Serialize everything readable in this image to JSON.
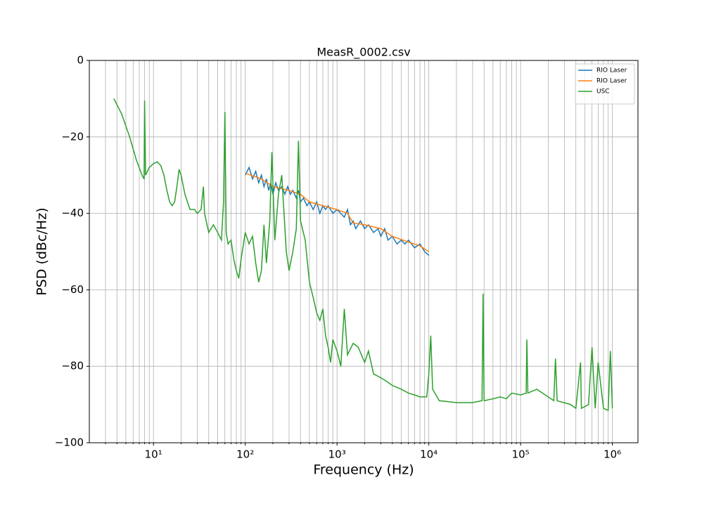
{
  "chart_data": {
    "type": "line",
    "title": "MeasR_0002.csv",
    "x_label": "Frequency (Hz)",
    "y_label": "PSD (dBc/Hz)",
    "log_x": true,
    "grid": true,
    "legend": "upper right",
    "xlim": [
      2,
      1900000
    ],
    "ylim": [
      -100,
      0
    ],
    "xticks": [
      {
        "value": 10,
        "label": "10¹"
      },
      {
        "value": 100,
        "label": "10²"
      },
      {
        "value": 1000,
        "label": "10³"
      },
      {
        "value": 10000,
        "label": "10⁴"
      },
      {
        "value": 100000,
        "label": "10⁵"
      },
      {
        "value": 1000000,
        "label": "10⁶"
      }
    ],
    "xminorticks": [
      3,
      4,
      5,
      6,
      7,
      8,
      9,
      20,
      30,
      40,
      50,
      60,
      70,
      80,
      90,
      200,
      300,
      400,
      500,
      600,
      700,
      800,
      900,
      2000,
      3000,
      4000,
      5000,
      6000,
      7000,
      8000,
      9000,
      20000,
      30000,
      40000,
      50000,
      60000,
      70000,
      80000,
      90000,
      200000,
      300000,
      400000,
      500000,
      600000,
      700000,
      800000,
      900000
    ],
    "yticks": [
      {
        "value": -100,
        "label": "−100"
      },
      {
        "value": -80,
        "label": "−80"
      },
      {
        "value": -60,
        "label": "−60"
      },
      {
        "value": -40,
        "label": "−40"
      },
      {
        "value": -20,
        "label": "−20"
      },
      0
    ],
    "series": [
      {
        "name": "RIO Laser",
        "color": "#1f77b4",
        "x": [
          100,
          110,
          120,
          130,
          140,
          150,
          160,
          170,
          180,
          190,
          200,
          215,
          230,
          250,
          270,
          290,
          310,
          330,
          360,
          380,
          400,
          430,
          470,
          500,
          550,
          600,
          650,
          700,
          750,
          800,
          900,
          1000,
          1100,
          1200,
          1300,
          1400,
          1500,
          1600,
          1800,
          2000,
          2200,
          2500,
          2800,
          3000,
          3300,
          3600,
          4000,
          4500,
          5000,
          5500,
          6000,
          7000,
          8000,
          9000,
          10000
        ],
        "values": [
          -30,
          -28,
          -31,
          -29,
          -32,
          -30,
          -33,
          -31,
          -34,
          -32,
          -35,
          -32,
          -34,
          -33,
          -35,
          -33,
          -35,
          -34,
          -36,
          -34,
          -37,
          -36,
          -38,
          -37,
          -39,
          -37,
          -40,
          -38,
          -39,
          -38,
          -40,
          -39,
          -40,
          -41,
          -39,
          -43,
          -42,
          -44,
          -42,
          -44,
          -43,
          -45,
          -44,
          -46,
          -44,
          -47,
          -46,
          -48,
          -47,
          -48,
          -47,
          -49,
          -48,
          -50,
          -51
        ]
      },
      {
        "name": "RIO Laser",
        "color": "#ff7f0e",
        "x": [
          100,
          150,
          200,
          300,
          400,
          500,
          700,
          1000,
          1300,
          1500,
          2000,
          3000,
          4000,
          6000,
          8000,
          10000
        ],
        "values": [
          -29.5,
          -31,
          -33,
          -34,
          -35,
          -37,
          -38,
          -39,
          -40,
          -42.5,
          -43,
          -44,
          -46,
          -47.5,
          -48.5,
          -50
        ]
      },
      {
        "name": "USC",
        "color": "#2ca02c",
        "x": [
          3.7,
          4.5,
          5.5,
          6.5,
          7.5,
          7.9,
          8,
          8.2,
          9,
          10,
          11,
          12,
          13,
          14,
          15,
          16,
          17,
          18,
          19,
          20,
          22,
          25,
          28,
          30,
          33,
          35,
          36,
          40,
          45,
          50,
          55,
          58,
          60,
          62,
          65,
          70,
          75,
          80,
          85,
          90,
          100,
          110,
          120,
          130,
          140,
          150,
          160,
          170,
          185,
          195,
          210,
          230,
          250,
          280,
          300,
          330,
          360,
          380,
          400,
          450,
          500,
          550,
          600,
          650,
          700,
          750,
          800,
          850,
          900,
          1000,
          1100,
          1200,
          1300,
          1500,
          1700,
          2000,
          2200,
          2500,
          3000,
          3500,
          4000,
          5000,
          6000,
          7000,
          8000,
          9500,
          10000,
          10500,
          11000,
          13000,
          20000,
          30000,
          38000,
          39000,
          40000,
          50000,
          60000,
          70000,
          80000,
          100000,
          115000,
          117000,
          120000,
          150000,
          200000,
          230000,
          240000,
          250000,
          350000,
          400000,
          450000,
          460000,
          550000,
          600000,
          650000,
          700000,
          800000,
          900000,
          950000,
          1000000
        ],
        "values": [
          -10,
          -14,
          -20,
          -26,
          -30,
          -31,
          -10.5,
          -30,
          -28,
          -27,
          -26.5,
          -27.5,
          -30,
          -34,
          -37,
          -38,
          -37,
          -33,
          -28.5,
          -30,
          -35,
          -39,
          -39,
          -40,
          -39,
          -33,
          -40,
          -45,
          -43,
          -45,
          -47,
          -37,
          -13.5,
          -45,
          -48,
          -47,
          -52,
          -55,
          -57,
          -52,
          -45,
          -48,
          -46,
          -53,
          -58,
          -55,
          -43,
          -53,
          -42,
          -24,
          -47,
          -35,
          -30,
          -50,
          -55,
          -50,
          -44,
          -21,
          -42,
          -47,
          -58,
          -62,
          -66,
          -68,
          -65,
          -72,
          -75,
          -79,
          -73,
          -76,
          -80,
          -65,
          -77,
          -74,
          -75,
          -79,
          -76,
          -82,
          -83,
          -84,
          -85,
          -86,
          -87,
          -87.5,
          -88,
          -88,
          -82,
          -72,
          -86,
          -89,
          -89.5,
          -89.5,
          -89,
          -61,
          -89,
          -88.5,
          -88,
          -88.5,
          -87,
          -87.5,
          -87,
          -73,
          -87,
          -86,
          -88,
          -89,
          -78,
          -89,
          -90,
          -91,
          -79,
          -91,
          -90,
          -75,
          -91,
          -79,
          -91,
          -91.5,
          -76,
          -91
        ]
      }
    ]
  }
}
